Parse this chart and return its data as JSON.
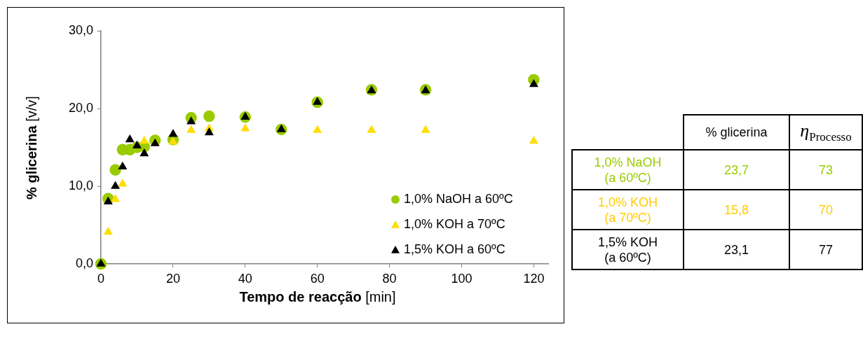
{
  "chart_data": [
    {
      "type": "scatter",
      "xlabel": "Tempo de reacção [min]",
      "ylabel": "% glicerina [v/v]",
      "xlim": [
        0,
        124
      ],
      "ylim": [
        0,
        30
      ],
      "xticks": [
        0,
        20,
        40,
        60,
        80,
        100,
        120
      ],
      "yticks": [
        {
          "value": 0,
          "label": "0,0"
        },
        {
          "value": 10,
          "label": "10,0"
        },
        {
          "value": 20,
          "label": "20,0"
        },
        {
          "value": 30,
          "label": "30,0"
        }
      ],
      "grid": false,
      "legend": "bottom right",
      "series": [
        {
          "name": "1,0% NaOH a 60ºC",
          "color": "#99cc00",
          "marker": "circle",
          "x": [
            0,
            2,
            4,
            6,
            8,
            10,
            12,
            15,
            20,
            25,
            30,
            40,
            50,
            60,
            75,
            90,
            120
          ],
          "values": [
            0,
            8.4,
            12.1,
            14.7,
            14.7,
            15.0,
            15.1,
            15.9,
            16.0,
            18.8,
            19.0,
            18.9,
            17.3,
            20.8,
            22.4,
            22.4,
            23.7
          ]
        },
        {
          "name": "1,0% KOH a 70ºC",
          "color": "#ffdd00",
          "marker": "triangle",
          "x": [
            2,
            4,
            6,
            12,
            15,
            20,
            25,
            30,
            40,
            60,
            75,
            90,
            120
          ],
          "values": [
            4.1,
            8.3,
            10.3,
            15.8,
            15.6,
            15.7,
            17.2,
            17.4,
            17.4,
            17.2,
            17.2,
            17.2,
            15.8
          ]
        },
        {
          "name": "1,5% KOH a 60ºC",
          "color": "#000000",
          "marker": "triangle",
          "x": [
            0,
            2,
            4,
            6,
            8,
            10,
            12,
            15,
            20,
            25,
            30,
            40,
            50,
            60,
            75,
            90,
            120
          ],
          "values": [
            0,
            8.0,
            10.0,
            12.5,
            16.0,
            15.2,
            14.2,
            15.5,
            16.7,
            18.3,
            16.9,
            18.9,
            17.3,
            20.8,
            22.3,
            22.3,
            23.1
          ]
        }
      ]
    },
    {
      "type": "other",
      "categories": [
        null,
        "% glicerina",
        "η$_{Processo}$"
      ],
      "y_categories": [
        "1,0% NaOH (a 60ºC)",
        "1,0% KOH (a 70ºC)",
        "1,5% KOH (a 60ºC)"
      ],
      "cell_labels": [
        [
          "23,7",
          "73"
        ],
        [
          "15,8",
          "70"
        ],
        [
          "23,1",
          "77"
        ]
      ],
      "colors": [
        "#99cc00",
        "#ffcc00",
        "#000000"
      ]
    }
  ]
}
